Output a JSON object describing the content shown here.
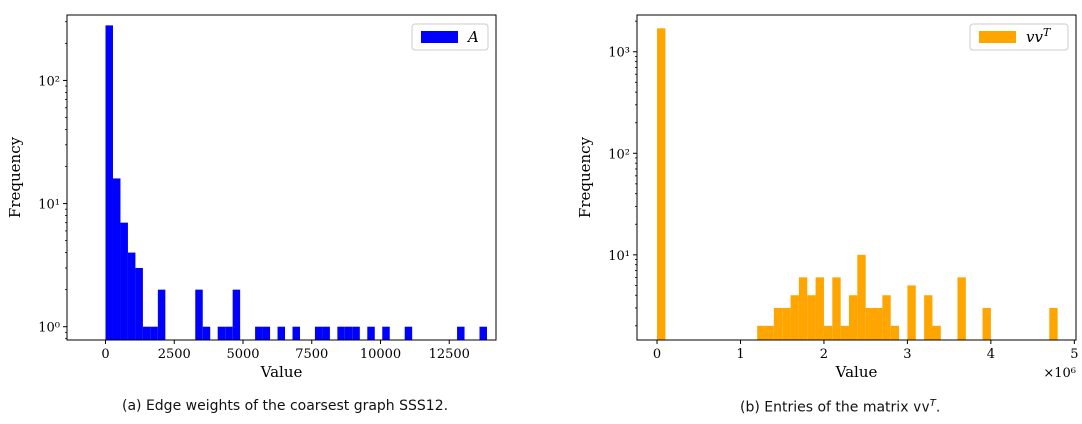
{
  "chart_data": [
    {
      "type": "bar",
      "panel": "a",
      "yscale": "log",
      "xlabel": "Value",
      "ylabel": "Frequency",
      "xlim": [
        -1400,
        14200
      ],
      "ylim": [
        0.78,
        340
      ],
      "xticks": [
        0,
        2500,
        5000,
        7500,
        10000,
        12500
      ],
      "xtick_labels": [
        "0",
        "2500",
        "5000",
        "7500",
        "10000",
        "12500"
      ],
      "yticks": [
        1,
        10,
        100
      ],
      "ytick_labels": [
        "10⁰",
        "10¹",
        "10²"
      ],
      "bin_width": 272,
      "series": [
        {
          "name": "A",
          "color": "#0000ff",
          "bins": [
            {
              "x": 0,
              "count": 280
            },
            {
              "x": 272,
              "count": 16
            },
            {
              "x": 544,
              "count": 7
            },
            {
              "x": 816,
              "count": 4
            },
            {
              "x": 1088,
              "count": 3
            },
            {
              "x": 1360,
              "count": 1
            },
            {
              "x": 1632,
              "count": 1
            },
            {
              "x": 1904,
              "count": 2
            },
            {
              "x": 3264,
              "count": 2
            },
            {
              "x": 3536,
              "count": 1
            },
            {
              "x": 4080,
              "count": 1
            },
            {
              "x": 4352,
              "count": 1
            },
            {
              "x": 4624,
              "count": 2
            },
            {
              "x": 5440,
              "count": 1
            },
            {
              "x": 5712,
              "count": 1
            },
            {
              "x": 6256,
              "count": 1
            },
            {
              "x": 6800,
              "count": 1
            },
            {
              "x": 7616,
              "count": 1
            },
            {
              "x": 7888,
              "count": 1
            },
            {
              "x": 8432,
              "count": 1
            },
            {
              "x": 8704,
              "count": 1
            },
            {
              "x": 8976,
              "count": 1
            },
            {
              "x": 9520,
              "count": 1
            },
            {
              "x": 10064,
              "count": 1
            },
            {
              "x": 10880,
              "count": 1
            },
            {
              "x": 12784,
              "count": 1
            },
            {
              "x": 13600,
              "count": 1
            }
          ]
        }
      ],
      "legend": "top-right",
      "grid": false
    },
    {
      "type": "bar",
      "panel": "b",
      "yscale": "log",
      "xlabel": "Value",
      "ylabel": "Frequency",
      "x_multiplier": "×10⁶",
      "xlim": [
        -0.24,
        5.02
      ],
      "ylim": [
        1.45,
        2300
      ],
      "xticks": [
        0,
        1,
        2,
        3,
        4,
        5
      ],
      "xtick_labels": [
        "0",
        "1",
        "2",
        "3",
        "4",
        "5"
      ],
      "yticks": [
        10,
        100,
        1000
      ],
      "ytick_labels": [
        "10¹",
        "10²",
        "10³"
      ],
      "bin_width": 0.1,
      "series": [
        {
          "name": "vv",
          "name_superscript": "T",
          "color": "#ffa500",
          "bins": [
            {
              "x": 0.0,
              "count": 1700
            },
            {
              "x": 1.2,
              "count": 2
            },
            {
              "x": 1.3,
              "count": 2
            },
            {
              "x": 1.4,
              "count": 3
            },
            {
              "x": 1.5,
              "count": 3
            },
            {
              "x": 1.6,
              "count": 4
            },
            {
              "x": 1.7,
              "count": 6
            },
            {
              "x": 1.8,
              "count": 4
            },
            {
              "x": 1.9,
              "count": 6
            },
            {
              "x": 2.0,
              "count": 2
            },
            {
              "x": 2.1,
              "count": 6
            },
            {
              "x": 2.2,
              "count": 2
            },
            {
              "x": 2.3,
              "count": 4
            },
            {
              "x": 2.4,
              "count": 10
            },
            {
              "x": 2.5,
              "count": 3
            },
            {
              "x": 2.6,
              "count": 3
            },
            {
              "x": 2.7,
              "count": 4
            },
            {
              "x": 2.8,
              "count": 2
            },
            {
              "x": 3.0,
              "count": 5
            },
            {
              "x": 3.2,
              "count": 4
            },
            {
              "x": 3.3,
              "count": 2
            },
            {
              "x": 3.6,
              "count": 6
            },
            {
              "x": 3.9,
              "count": 3
            },
            {
              "x": 4.7,
              "count": 3
            }
          ]
        }
      ],
      "legend": "top-right",
      "grid": false
    }
  ],
  "captions": {
    "a": "(a) Edge weights of the coarsest graph SSS12.",
    "b_prefix": "(b) Entries of the matrix ",
    "b_mono": "vv",
    "b_sup": "T",
    "b_suffix": "."
  }
}
